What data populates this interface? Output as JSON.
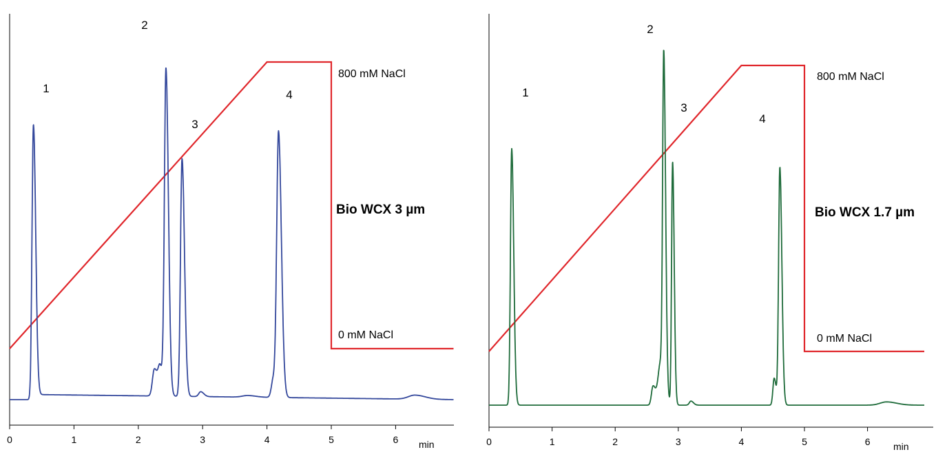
{
  "chart_data": [
    {
      "type": "line",
      "column_label": "Bio WCX 3 µm",
      "x_unit": "min",
      "x_ticks": [
        "0",
        "1",
        "2",
        "3",
        "4",
        "5",
        "6"
      ],
      "xlim": [
        0,
        6.9
      ],
      "trace_color": "#34489c",
      "gradient_color": "#e0262b",
      "gradient_labels": {
        "high": "800 mM NaCl",
        "low": "0 mM NaCl"
      },
      "gradient": {
        "start_min": 0,
        "ramp_end_min": 4.0,
        "hold_end_min": 5.0,
        "end_min": 6.9,
        "high_mM": 800,
        "low_mM": 0
      },
      "baseline": 0.02,
      "peaks": [
        {
          "label": "1",
          "rt": 0.37,
          "height": 1.0,
          "width": 0.022
        },
        {
          "label": "2",
          "rt": 2.43,
          "height": 1.2,
          "width": 0.024
        },
        {
          "label": "3",
          "rt": 2.68,
          "height": 0.88,
          "width": 0.024
        },
        {
          "label": "4",
          "rt": 4.18,
          "height": 0.97,
          "width": 0.028
        }
      ],
      "minor_peaks": [
        {
          "rt": 2.25,
          "height": 0.1,
          "width": 0.03
        },
        {
          "rt": 2.34,
          "height": 0.1,
          "width": 0.03
        },
        {
          "rt": 2.97,
          "height": 0.018,
          "width": 0.03
        },
        {
          "rt": 3.7,
          "height": 0.006,
          "width": 0.08
        },
        {
          "rt": 4.1,
          "height": 0.07,
          "width": 0.03
        },
        {
          "rt": 6.3,
          "height": 0.015,
          "width": 0.1
        }
      ]
    },
    {
      "type": "line",
      "column_label": "Bio WCX 1.7 µm",
      "x_unit": "min",
      "x_ticks": [
        "0",
        "1",
        "2",
        "3",
        "4",
        "5",
        "6"
      ],
      "xlim": [
        0,
        6.9
      ],
      "trace_color": "#1e6b3a",
      "gradient_color": "#e0262b",
      "gradient_labels": {
        "high": "800 mM NaCl",
        "low": "0 mM NaCl"
      },
      "gradient": {
        "start_min": 0,
        "ramp_end_min": 4.0,
        "hold_end_min": 5.0,
        "end_min": 6.9,
        "high_mM": 800,
        "low_mM": 0
      },
      "baseline": 0.0,
      "peaks": [
        {
          "label": "1",
          "rt": 0.36,
          "height": 0.95,
          "width": 0.02
        },
        {
          "label": "2",
          "rt": 2.77,
          "height": 1.2,
          "width": 0.018
        },
        {
          "label": "3",
          "rt": 2.91,
          "height": 0.9,
          "width": 0.016
        },
        {
          "label": "4",
          "rt": 4.61,
          "height": 0.88,
          "width": 0.02
        }
      ],
      "minor_peaks": [
        {
          "rt": 2.6,
          "height": 0.07,
          "width": 0.025
        },
        {
          "rt": 2.72,
          "height": 0.16,
          "width": 0.04
        },
        {
          "rt": 3.2,
          "height": 0.015,
          "width": 0.025
        },
        {
          "rt": 4.52,
          "height": 0.1,
          "width": 0.02
        },
        {
          "rt": 6.3,
          "height": 0.012,
          "width": 0.1
        }
      ]
    }
  ]
}
